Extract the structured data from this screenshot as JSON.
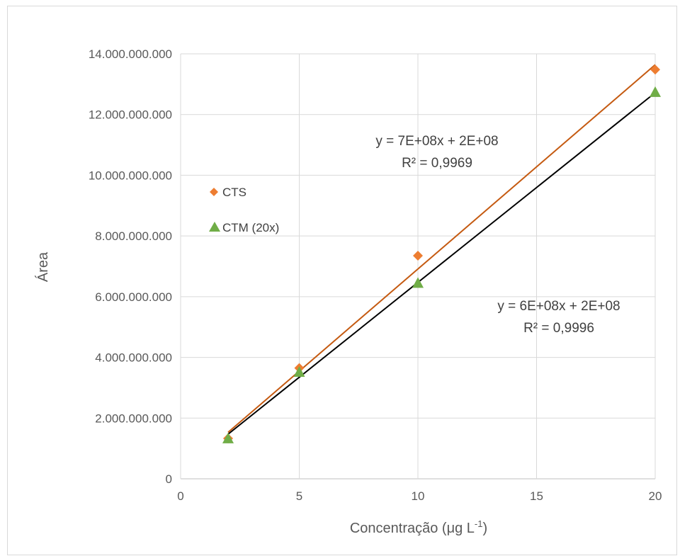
{
  "chart_data": {
    "type": "scatter",
    "title": "",
    "xlabel": "Concentração (μg L",
    "xlabel_superscript": "-1",
    "xlabel_suffix": ")",
    "ylabel": "Área",
    "xlim": [
      0,
      20
    ],
    "ylim": [
      0,
      14000000000
    ],
    "xticks": [
      0,
      5,
      10,
      15,
      20
    ],
    "xtick_labels": [
      "0",
      "5",
      "10",
      "15",
      "20"
    ],
    "yticks": [
      0,
      2000000000,
      4000000000,
      6000000000,
      8000000000,
      10000000000,
      12000000000,
      14000000000
    ],
    "ytick_labels": [
      "0",
      "2.000.000.000",
      "4.000.000.000",
      "6.000.000.000",
      "8.000.000.000",
      "10.000.000.000",
      "12.000.000.000",
      "14.000.000.000"
    ],
    "grid": true,
    "legend_position": "upper-left",
    "series": [
      {
        "name": "CTS",
        "marker": "diamond",
        "color": "#ED7D31",
        "x": [
          2,
          5,
          10,
          20
        ],
        "y": [
          1330000000,
          3650000000,
          7350000000,
          13480000000
        ],
        "trendline": {
          "color": "#C55A11",
          "x": [
            2,
            20
          ],
          "y": [
            1530000000,
            13640000000
          ],
          "equation": "y = 7E+08x + 2E+08",
          "r2": "R² = 0,9969"
        }
      },
      {
        "name": "CTM (20x)",
        "marker": "triangle",
        "color": "#70AD47",
        "x": [
          2,
          5,
          10,
          20
        ],
        "y": [
          1310000000,
          3500000000,
          6430000000,
          12720000000
        ],
        "trendline": {
          "color": "#000000",
          "x": [
            2,
            20
          ],
          "y": [
            1470000000,
            12720000000
          ],
          "equation": "y = 6E+08x + 2E+08",
          "r2": "R² = 0,9996"
        }
      }
    ]
  }
}
